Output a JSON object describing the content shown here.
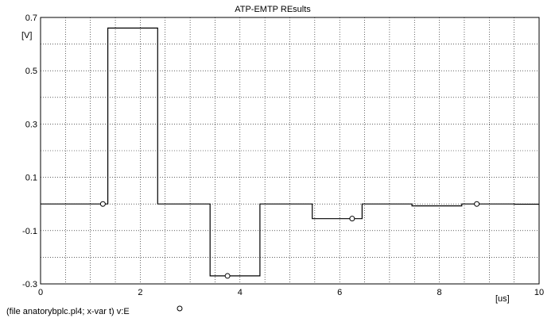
{
  "chart_data": {
    "type": "line",
    "title": "ATP-EMTP REsults",
    "ylabel": "[V]",
    "xlabel": "[us]",
    "xlim": [
      0,
      10
    ],
    "ylim": [
      -0.3,
      0.7
    ],
    "x_ticks": [
      0,
      2,
      4,
      6,
      8,
      10
    ],
    "x_tick_labels": [
      "0",
      "2",
      "4",
      "6",
      "8",
      "10"
    ],
    "y_ticks": [
      0.7,
      0.5,
      0.3,
      0.1,
      -0.1,
      -0.3
    ],
    "y_tick_labels": [
      "0.7",
      "0.5",
      "0.3",
      "0.1",
      "-0.1",
      "-0.3"
    ],
    "grid": true,
    "grid_x_step": 0.5,
    "grid_y_step": 0.1,
    "series": [
      {
        "x": [
          0,
          1.35,
          1.35,
          2.35,
          2.35,
          3.4,
          3.4,
          4.4,
          4.4,
          5.45,
          5.45,
          6.45,
          6.45,
          7.45,
          7.45,
          8.45,
          8.45,
          9.5,
          9.5,
          10
        ],
        "y": [
          0,
          0,
          0.66,
          0.66,
          0,
          0,
          -0.27,
          -0.27,
          0,
          0,
          -0.055,
          -0.055,
          0,
          0,
          -0.007,
          -0.007,
          0,
          0,
          -0.001,
          -0.001
        ],
        "color": "#000000",
        "markers_x": [
          1.25,
          3.75,
          6.25,
          8.75
        ],
        "marker_style": "open-circle"
      }
    ],
    "footer": "(file anatorybplc.pl4; x-var t)  v:E",
    "legend_marker": "open-circle"
  }
}
